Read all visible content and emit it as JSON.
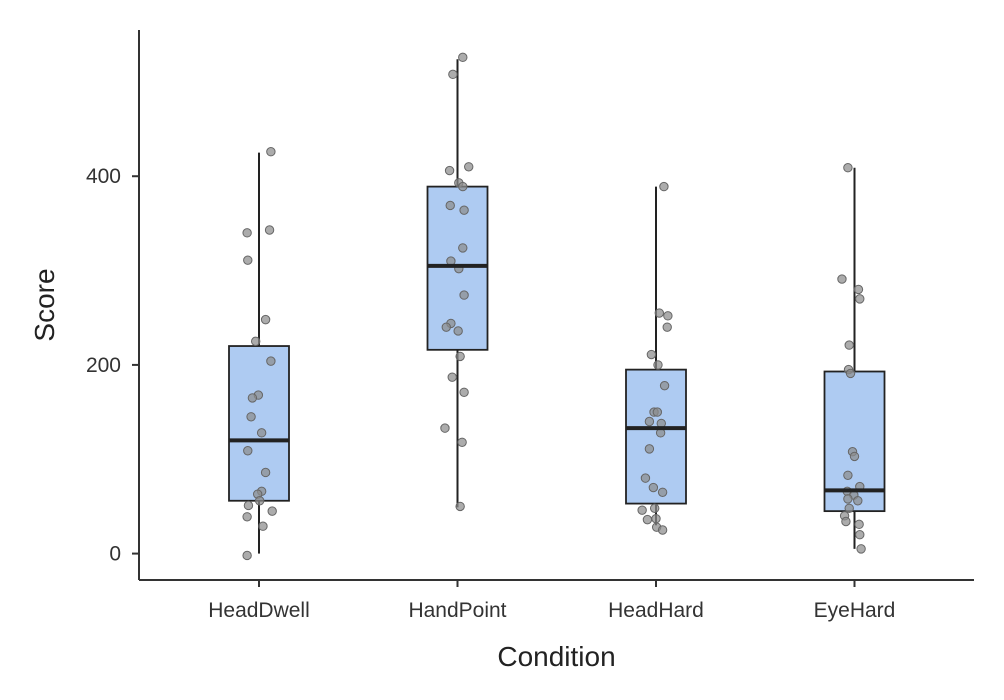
{
  "chart_data": {
    "type": "box",
    "xlabel": "Condition",
    "ylabel": "Score",
    "ylim": [
      -28,
      555
    ],
    "yticks": [
      0,
      200,
      400
    ],
    "grid": false,
    "legend": "none",
    "colors": {
      "box_fill": "#aecbf2",
      "box_stroke": "#222222",
      "point_fill": "#8c8c8c"
    },
    "categories": [
      "HeadDwell",
      "HandPoint",
      "HeadHard",
      "EyeHard"
    ],
    "boxes": [
      {
        "category": "HeadDwell",
        "whisker_low": 0,
        "q1": 56,
        "median": 120,
        "q3": 220,
        "whisker_high": 425,
        "points": [
          {
            "j": 0.36,
            "y": 426
          },
          {
            "j": 0.32,
            "y": 343
          },
          {
            "j": -0.36,
            "y": 340
          },
          {
            "j": -0.34,
            "y": 311
          },
          {
            "j": 0.2,
            "y": 248
          },
          {
            "j": -0.1,
            "y": 225
          },
          {
            "j": 0.36,
            "y": 204
          },
          {
            "j": -0.02,
            "y": 168
          },
          {
            "j": -0.2,
            "y": 165
          },
          {
            "j": -0.24,
            "y": 145
          },
          {
            "j": 0.08,
            "y": 128
          },
          {
            "j": -0.34,
            "y": 109
          },
          {
            "j": 0.2,
            "y": 86
          },
          {
            "j": 0.08,
            "y": 66
          },
          {
            "j": -0.04,
            "y": 63
          },
          {
            "j": 0.02,
            "y": 56
          },
          {
            "j": -0.32,
            "y": 51
          },
          {
            "j": 0.4,
            "y": 45
          },
          {
            "j": -0.36,
            "y": 39
          },
          {
            "j": 0.12,
            "y": 29
          },
          {
            "j": -0.36,
            "y": -2
          }
        ]
      },
      {
        "category": "HandPoint",
        "whisker_low": 49,
        "q1": 216,
        "median": 305,
        "q3": 389,
        "whisker_high": 524,
        "points": [
          {
            "j": 0.16,
            "y": 526
          },
          {
            "j": -0.14,
            "y": 508
          },
          {
            "j": 0.34,
            "y": 410
          },
          {
            "j": -0.24,
            "y": 406
          },
          {
            "j": 0.04,
            "y": 393
          },
          {
            "j": 0.16,
            "y": 389
          },
          {
            "j": -0.22,
            "y": 369
          },
          {
            "j": 0.2,
            "y": 364
          },
          {
            "j": 0.16,
            "y": 324
          },
          {
            "j": -0.2,
            "y": 310
          },
          {
            "j": 0.04,
            "y": 302
          },
          {
            "j": 0.2,
            "y": 274
          },
          {
            "j": -0.2,
            "y": 244
          },
          {
            "j": -0.34,
            "y": 240
          },
          {
            "j": 0.02,
            "y": 236
          },
          {
            "j": 0.08,
            "y": 209
          },
          {
            "j": -0.16,
            "y": 187
          },
          {
            "j": 0.2,
            "y": 171
          },
          {
            "j": -0.38,
            "y": 133
          },
          {
            "j": 0.14,
            "y": 118
          },
          {
            "j": 0.08,
            "y": 50
          }
        ]
      },
      {
        "category": "HeadHard",
        "whisker_low": 30,
        "q1": 53,
        "median": 133,
        "q3": 195,
        "whisker_high": 389,
        "points": [
          {
            "j": 0.24,
            "y": 389
          },
          {
            "j": 0.1,
            "y": 255
          },
          {
            "j": 0.36,
            "y": 252
          },
          {
            "j": 0.34,
            "y": 240
          },
          {
            "j": -0.14,
            "y": 211
          },
          {
            "j": 0.06,
            "y": 200
          },
          {
            "j": 0.26,
            "y": 178
          },
          {
            "j": -0.06,
            "y": 150
          },
          {
            "j": 0.04,
            "y": 150
          },
          {
            "j": -0.2,
            "y": 140
          },
          {
            "j": 0.16,
            "y": 138
          },
          {
            "j": 0.14,
            "y": 128
          },
          {
            "j": -0.2,
            "y": 111
          },
          {
            "j": -0.32,
            "y": 80
          },
          {
            "j": -0.08,
            "y": 70
          },
          {
            "j": 0.2,
            "y": 65
          },
          {
            "j": -0.04,
            "y": 48
          },
          {
            "j": -0.42,
            "y": 46
          },
          {
            "j": -0.26,
            "y": 36
          },
          {
            "j": 0.0,
            "y": 37
          },
          {
            "j": 0.02,
            "y": 28
          },
          {
            "j": 0.2,
            "y": 25
          }
        ]
      },
      {
        "category": "EyeHard",
        "whisker_low": 5,
        "q1": 45,
        "median": 67,
        "q3": 193,
        "whisker_high": 409,
        "points": [
          {
            "j": -0.2,
            "y": 409
          },
          {
            "j": -0.38,
            "y": 291
          },
          {
            "j": 0.12,
            "y": 280
          },
          {
            "j": 0.16,
            "y": 270
          },
          {
            "j": -0.16,
            "y": 221
          },
          {
            "j": -0.18,
            "y": 195
          },
          {
            "j": -0.12,
            "y": 191
          },
          {
            "j": -0.06,
            "y": 108
          },
          {
            "j": 0.0,
            "y": 103
          },
          {
            "j": -0.2,
            "y": 83
          },
          {
            "j": 0.16,
            "y": 71
          },
          {
            "j": -0.22,
            "y": 66
          },
          {
            "j": -0.02,
            "y": 62
          },
          {
            "j": 0.1,
            "y": 56
          },
          {
            "j": -0.2,
            "y": 58
          },
          {
            "j": -0.16,
            "y": 48
          },
          {
            "j": -0.3,
            "y": 40
          },
          {
            "j": -0.26,
            "y": 34
          },
          {
            "j": 0.14,
            "y": 31
          },
          {
            "j": 0.16,
            "y": 20
          },
          {
            "j": 0.2,
            "y": 5
          }
        ]
      }
    ]
  }
}
